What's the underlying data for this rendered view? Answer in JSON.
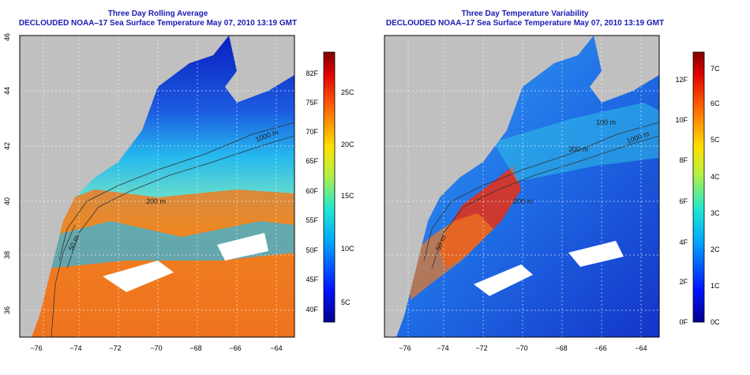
{
  "left_panel": {
    "title": "Three Day Rolling Average",
    "subtitle": "DECLOUDED NOAA–17 Sea Surface Temperature May 07, 2010 13:19 GMT",
    "colorbar": {
      "f_labels": [
        "82F",
        "75F",
        "70F",
        "65F",
        "60F",
        "55F",
        "50F",
        "45F",
        "40F"
      ],
      "c_labels": [
        "25C",
        "20C",
        "15C",
        "10C",
        "5C"
      ]
    },
    "contour_labels": [
      "1000 m",
      "200 m",
      "50 m"
    ]
  },
  "right_panel": {
    "title": "Three Day Temperature Variability",
    "subtitle": "DECLOUDED NOAA–17 Sea Surface Temperature May 07, 2010 13:19 GMT",
    "colorbar": {
      "f_labels": [
        "12F",
        "10F",
        "8F",
        "6F",
        "4F",
        "2F",
        "0F"
      ],
      "c_labels": [
        "7C",
        "6C",
        "5C",
        "4C",
        "3C",
        "2C",
        "1C",
        "0C"
      ]
    },
    "contour_labels": [
      "100 m",
      "300 m",
      "1000 m",
      "200 m",
      "50 m"
    ]
  },
  "axes": {
    "lat_labels": [
      "46",
      "44",
      "42",
      "40",
      "38",
      "36"
    ],
    "lon_labels": [
      "−76",
      "−74",
      "−72",
      "−70",
      "−68",
      "−66",
      "−64"
    ]
  },
  "colors": {
    "title": "#1a1ab4",
    "land": "#c0c0c0",
    "cold": "#1236c8",
    "warm": "#e8501c"
  }
}
